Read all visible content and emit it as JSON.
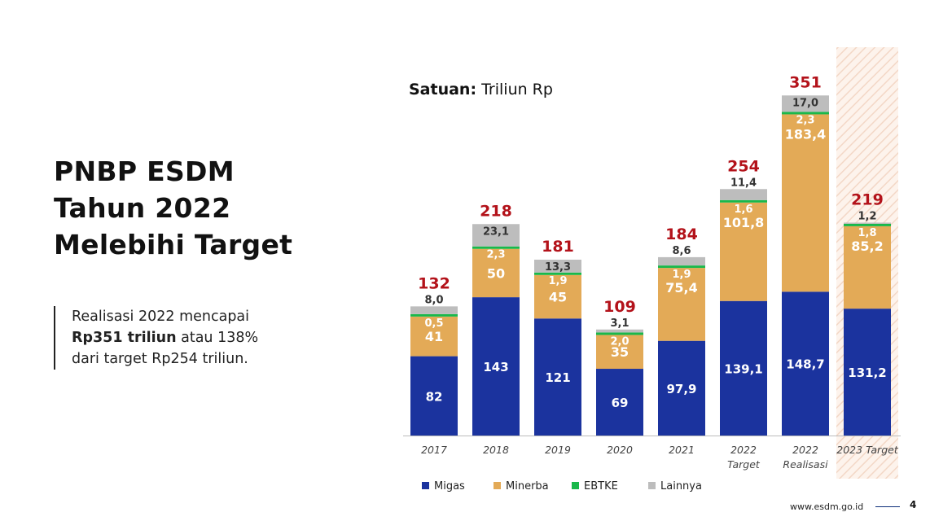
{
  "headline": [
    "PNBP ESDM",
    "Tahun 2022",
    "Melebihi Target"
  ],
  "summary": {
    "line1": "Realisasi 2022 mencapai",
    "bold": "Rp351 triliun",
    "line2_rest": " atau 138%",
    "line3": "dari target Rp254 triliun."
  },
  "unit": {
    "label": "Satuan:",
    "value": " Triliun Rp"
  },
  "footer": {
    "url": "www.esdm.go.id",
    "page": "4"
  },
  "colors": {
    "Migas": "#1b339e",
    "Minerba": "#e3aa57",
    "EBTKE": "#19b84a",
    "Lainnya": "#bdbdbd",
    "total": "#b3121a",
    "highlight": "#f3d7c6"
  },
  "chart_data": {
    "type": "bar",
    "stacked": true,
    "categories": [
      "2017",
      "2018",
      "2019",
      "2020",
      "2021",
      "2022 Target",
      "2022 Realisasi",
      "2023 Target"
    ],
    "category_lines": [
      [
        "2017"
      ],
      [
        "2018"
      ],
      [
        "2019"
      ],
      [
        "2020"
      ],
      [
        "2021"
      ],
      [
        "2022",
        "Target"
      ],
      [
        "2022",
        "Realisasi"
      ],
      [
        "2023 Target"
      ]
    ],
    "series": [
      {
        "name": "Migas",
        "values": [
          82,
          143,
          121,
          69,
          97.9,
          139.1,
          148.7,
          131.2
        ],
        "labels": [
          "82",
          "143",
          "121",
          "69",
          "97,9",
          "139,1",
          "148,7",
          "131,2"
        ]
      },
      {
        "name": "Minerba",
        "values": [
          41,
          50,
          45,
          35,
          75.4,
          101.8,
          183.4,
          85.2
        ],
        "labels": [
          "41",
          "50",
          "45",
          "35",
          "75,4",
          "101,8",
          "183,4",
          "85,2"
        ]
      },
      {
        "name": "EBTKE",
        "values": [
          0.5,
          2.3,
          1.9,
          2.0,
          1.9,
          1.6,
          2.3,
          1.8
        ],
        "labels": [
          "0,5",
          "2,3",
          "1,9",
          "2,0",
          "1,9",
          "1,6",
          "2,3",
          "1,8"
        ]
      },
      {
        "name": "Lainnya",
        "values": [
          8.0,
          23.1,
          13.3,
          3.1,
          8.6,
          11.4,
          17.0,
          1.2
        ],
        "labels": [
          "8,0",
          "23,1",
          "13,3",
          "3,1",
          "8,6",
          "11,4",
          "17,0",
          "1,2"
        ]
      }
    ],
    "totals": [
      132,
      218,
      181,
      109,
      184,
      254,
      351,
      219
    ],
    "highlighted_category": "2023 Target",
    "ylim": [
      0,
      351
    ],
    "legend": [
      "Migas",
      "Minerba",
      "EBTKE",
      "Lainnya"
    ],
    "legend_position": "bottom",
    "grid": false
  }
}
